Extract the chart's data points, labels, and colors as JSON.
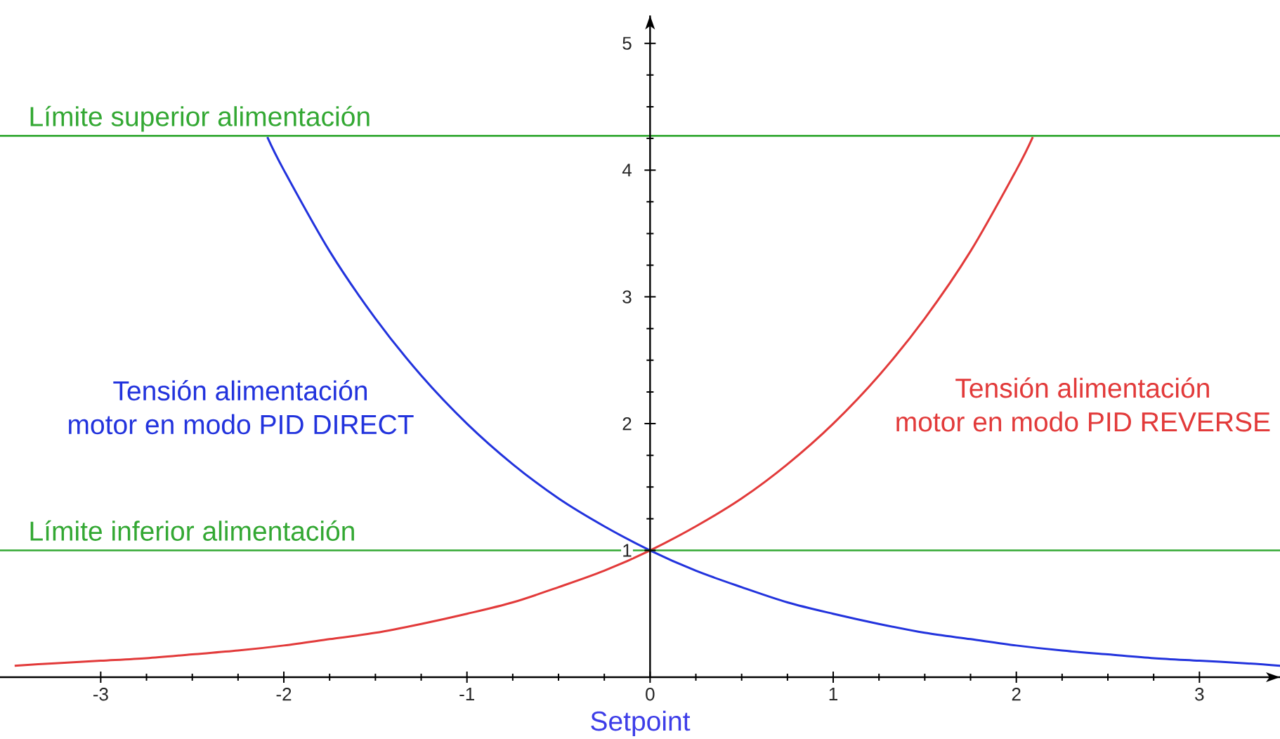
{
  "chart_data": {
    "type": "line",
    "xlabel": "Setpoint",
    "xlim": [
      -3.55,
      3.44
    ],
    "ylim": [
      0,
      5.22
    ],
    "xticks": [
      -3,
      -2,
      -1,
      0,
      1,
      2,
      3
    ],
    "yticks": [
      1,
      2,
      3,
      4,
      5
    ],
    "series": [
      {
        "name": "Tensión alimentación motor en modo PID DIRECT",
        "color": "#2233dd",
        "x": [
          -2.09,
          -2,
          -1.75,
          -1.5,
          -1.25,
          -1,
          -0.75,
          -0.5,
          -0.25,
          0,
          0.25,
          0.5,
          0.75,
          1,
          1.25,
          1.5,
          1.75,
          2,
          2.25,
          2.5,
          2.75,
          3,
          3.25,
          3.44
        ],
        "values": [
          4.26,
          4,
          3.36,
          2.83,
          2.38,
          2,
          1.68,
          1.41,
          1.19,
          1,
          0.84,
          0.71,
          0.59,
          0.5,
          0.42,
          0.35,
          0.3,
          0.25,
          0.21,
          0.18,
          0.15,
          0.13,
          0.11,
          0.09
        ]
      },
      {
        "name": "Tensión alimentación motor en modo PID REVERSE",
        "color": "#e23a3a",
        "x": [
          -3.47,
          -3.25,
          -3,
          -2.75,
          -2.5,
          -2.25,
          -2,
          -1.75,
          -1.5,
          -1.25,
          -1,
          -0.75,
          -0.5,
          -0.25,
          0,
          0.25,
          0.5,
          0.75,
          1,
          1.25,
          1.5,
          1.75,
          2,
          2.09
        ],
        "values": [
          0.09,
          0.11,
          0.13,
          0.15,
          0.18,
          0.21,
          0.25,
          0.3,
          0.35,
          0.42,
          0.5,
          0.59,
          0.71,
          0.84,
          1,
          1.19,
          1.41,
          1.68,
          2,
          2.38,
          2.83,
          3.36,
          4,
          4.26
        ]
      }
    ],
    "ref_lines": [
      {
        "axis": "y",
        "value": 4.27,
        "label": "Límite superior alimentación",
        "color": "#33a833"
      },
      {
        "axis": "y",
        "value": 1,
        "label": "Límite inferior alimentación",
        "color": "#33a833"
      }
    ]
  }
}
